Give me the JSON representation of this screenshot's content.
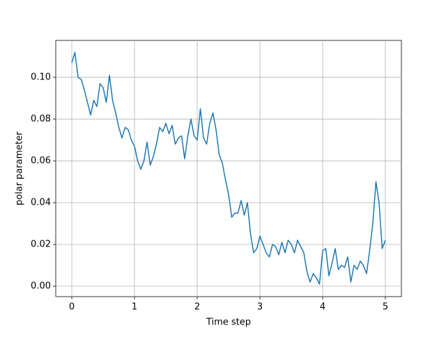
{
  "chart_data": {
    "type": "line",
    "xlabel": "Time step",
    "ylabel": "polar parameter",
    "x": [
      0,
      0.05,
      0.1,
      0.15,
      0.2,
      0.25,
      0.3,
      0.35,
      0.4,
      0.45,
      0.5,
      0.55,
      0.6,
      0.65,
      0.7,
      0.75,
      0.8,
      0.85,
      0.9,
      0.95,
      1.0,
      1.05,
      1.1,
      1.15,
      1.2,
      1.25,
      1.3,
      1.35,
      1.4,
      1.45,
      1.5,
      1.55,
      1.6,
      1.65,
      1.7,
      1.75,
      1.8,
      1.85,
      1.9,
      1.95,
      2.0,
      2.05,
      2.1,
      2.15,
      2.2,
      2.25,
      2.3,
      2.35,
      2.4,
      2.45,
      2.5,
      2.55,
      2.6,
      2.65,
      2.7,
      2.75,
      2.8,
      2.85,
      2.9,
      2.95,
      3.0,
      3.05,
      3.1,
      3.15,
      3.2,
      3.25,
      3.3,
      3.35,
      3.4,
      3.45,
      3.5,
      3.55,
      3.6,
      3.65,
      3.7,
      3.75,
      3.8,
      3.85,
      3.9,
      3.95,
      4.0,
      4.05,
      4.1,
      4.15,
      4.2,
      4.25,
      4.3,
      4.35,
      4.4,
      4.45,
      4.5,
      4.55,
      4.6,
      4.65,
      4.7,
      4.75,
      4.8,
      4.85,
      4.9,
      4.95,
      5.0
    ],
    "series": [
      {
        "color": "#1f77b4",
        "values": [
          0.107,
          0.112,
          0.1,
          0.099,
          0.094,
          0.088,
          0.082,
          0.089,
          0.086,
          0.097,
          0.095,
          0.088,
          0.101,
          0.089,
          0.083,
          0.076,
          0.071,
          0.076,
          0.075,
          0.07,
          0.067,
          0.06,
          0.056,
          0.06,
          0.069,
          0.058,
          0.062,
          0.068,
          0.076,
          0.074,
          0.078,
          0.073,
          0.077,
          0.068,
          0.071,
          0.072,
          0.061,
          0.072,
          0.08,
          0.072,
          0.07,
          0.085,
          0.071,
          0.068,
          0.078,
          0.083,
          0.075,
          0.063,
          0.059,
          0.051,
          0.044,
          0.033,
          0.035,
          0.035,
          0.041,
          0.034,
          0.04,
          0.025,
          0.016,
          0.018,
          0.024,
          0.02,
          0.016,
          0.014,
          0.02,
          0.019,
          0.015,
          0.021,
          0.016,
          0.022,
          0.02,
          0.016,
          0.022,
          0.019,
          0.016,
          0.007,
          0.002,
          0.006,
          0.004,
          0.001,
          0.017,
          0.018,
          0.005,
          0.011,
          0.018,
          0.008,
          0.01,
          0.009,
          0.014,
          0.002,
          0.01,
          0.008,
          0.012,
          0.01,
          0.006,
          0.017,
          0.03,
          0.05,
          0.04,
          0.018,
          0.022
        ]
      }
    ],
    "xlim": [
      -0.256,
      5.256
    ],
    "ylim": [
      -0.005,
      0.1177
    ],
    "xticks": [
      0,
      1,
      2,
      3,
      4,
      5
    ],
    "yticks": [
      {
        "value": 0,
        "label": "0.00"
      },
      {
        "value": 0.02,
        "label": "0.02"
      },
      {
        "value": 0.04,
        "label": "0.04"
      },
      {
        "value": 0.06,
        "label": "0.06"
      },
      {
        "value": 0.08,
        "label": "0.08"
      },
      {
        "value": 0.1,
        "label": "0.10"
      }
    ],
    "grid": true
  }
}
